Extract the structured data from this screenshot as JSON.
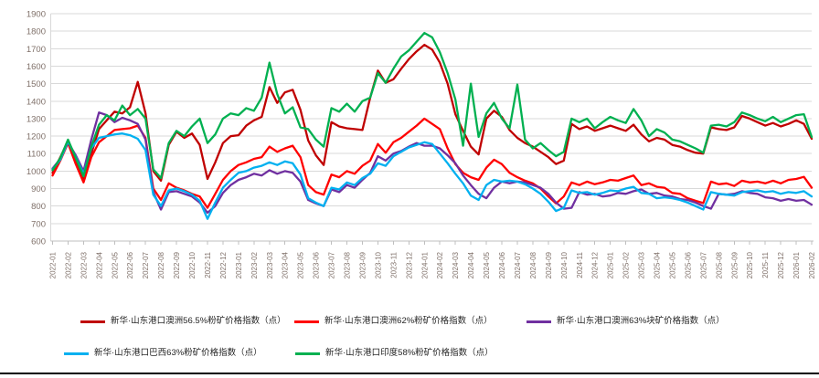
{
  "chart_data": {
    "type": "line",
    "title": "",
    "xlabel": "",
    "ylabel": "",
    "ylim": [
      600,
      1900
    ],
    "y_ticks": [
      1900,
      1800,
      1700,
      1600,
      1500,
      1400,
      1300,
      1200,
      1100,
      1000,
      900,
      800,
      700,
      600
    ],
    "grid": true,
    "legend_position": "bottom",
    "axis_label_color": "#7f7069",
    "gridline_color": "#d9d9d9",
    "tick_color": "#bfbfbf",
    "points_per_month": 2,
    "x_labels": [
      "2022-01",
      "2022-02",
      "2022-03",
      "2022-04",
      "2022-05",
      "2022-06",
      "2022-07",
      "2022-08",
      "2022-09",
      "2022-10",
      "2022-11",
      "2022-12",
      "2023-01",
      "2023-02",
      "2023-03",
      "2023-04",
      "2023-05",
      "2023-06",
      "2023-07",
      "2023-08",
      "2023-09",
      "2023-10",
      "2023-11",
      "2023-12",
      "2024-01",
      "2024-02",
      "2024-03",
      "2024-04",
      "2024-05",
      "2024-06",
      "2024-07",
      "2024-08",
      "2024-09",
      "2024-10",
      "2024-11",
      "2024-12",
      "2025-01",
      "2025-02",
      "2025-03",
      "2025-04",
      "2025-05",
      "2025-06",
      "2025-07",
      "2025-08",
      "2025-09",
      "2025-10",
      "2025-11",
      "2025-12",
      "2026-01",
      "2026-02"
    ],
    "series": [
      {
        "name": "新华·山东港口澳洲56.5%粉矿价格指数（点）",
        "color": "#C00000",
        "values": [
          990,
          1080,
          1170,
          1055,
          945,
          1100,
          1240,
          1290,
          1340,
          1330,
          1365,
          1510,
          1330,
          1000,
          945,
          1150,
          1225,
          1190,
          1215,
          1150,
          955,
          1050,
          1160,
          1200,
          1205,
          1260,
          1290,
          1310,
          1480,
          1390,
          1450,
          1465,
          1350,
          1175,
          1090,
          1035,
          1280,
          1255,
          1245,
          1240,
          1235,
          1420,
          1575,
          1505,
          1525,
          1585,
          1640,
          1685,
          1722,
          1695,
          1620,
          1500,
          1325,
          1230,
          1140,
          1095,
          1300,
          1345,
          1310,
          1235,
          1190,
          1160,
          1140,
          1110,
          1080,
          1040,
          1060,
          1270,
          1240,
          1255,
          1230,
          1245,
          1260,
          1245,
          1230,
          1265,
          1210,
          1170,
          1190,
          1180,
          1150,
          1140,
          1120,
          1105,
          1100,
          1250,
          1240,
          1235,
          1250,
          1315,
          1300,
          1280,
          1260,
          1275,
          1255,
          1270,
          1290,
          1270,
          1185
        ]
      },
      {
        "name": "新华·山东港口澳洲62%粉矿价格指数（点）",
        "color": "#FF0000",
        "values": [
          975,
          1060,
          1160,
          1040,
          935,
          1080,
          1165,
          1200,
          1235,
          1240,
          1245,
          1260,
          1190,
          900,
          835,
          930,
          905,
          890,
          870,
          855,
          790,
          870,
          950,
          1000,
          1035,
          1050,
          1070,
          1080,
          1140,
          1110,
          1130,
          1145,
          1080,
          920,
          880,
          865,
          980,
          965,
          1000,
          985,
          1030,
          1060,
          1155,
          1105,
          1165,
          1190,
          1225,
          1260,
          1300,
          1270,
          1240,
          1130,
          1040,
          990,
          965,
          950,
          1020,
          1065,
          1040,
          990,
          965,
          945,
          930,
          900,
          855,
          815,
          855,
          935,
          920,
          940,
          925,
          935,
          950,
          945,
          960,
          975,
          920,
          930,
          910,
          905,
          875,
          870,
          845,
          830,
          817,
          940,
          925,
          930,
          915,
          945,
          935,
          940,
          930,
          945,
          930,
          950,
          955,
          967,
          905
        ]
      },
      {
        "name": "新华·山东港口澳洲63%块矿价格指数（点）",
        "color": "#7030A0",
        "values": [
          1015,
          1070,
          1165,
          1090,
          1000,
          1180,
          1335,
          1320,
          1280,
          1305,
          1290,
          1270,
          1180,
          880,
          780,
          880,
          885,
          870,
          855,
          820,
          762,
          800,
          875,
          920,
          950,
          965,
          985,
          975,
          1005,
          985,
          1000,
          990,
          940,
          835,
          815,
          800,
          895,
          880,
          920,
          905,
          950,
          990,
          1085,
          1060,
          1100,
          1115,
          1140,
          1160,
          1145,
          1145,
          1130,
          1090,
          1045,
          975,
          920,
          870,
          845,
          905,
          940,
          930,
          940,
          935,
          920,
          905,
          870,
          820,
          785,
          790,
          880,
          865,
          870,
          855,
          860,
          875,
          870,
          885,
          895,
          870,
          875,
          860,
          855,
          840,
          835,
          820,
          800,
          785,
          870,
          865,
          870,
          885,
          875,
          870,
          850,
          845,
          830,
          840,
          830,
          835,
          808
        ]
      },
      {
        "name": "新华·山东港口巴西63%粉矿价格指数（点）",
        "color": "#00B0F0",
        "values": [
          1010,
          1065,
          1170,
          1080,
          985,
          1130,
          1190,
          1200,
          1210,
          1215,
          1205,
          1185,
          1120,
          865,
          800,
          890,
          900,
          885,
          865,
          830,
          727,
          820,
          905,
          950,
          990,
          1000,
          1020,
          1030,
          1050,
          1035,
          1055,
          1045,
          980,
          845,
          820,
          800,
          905,
          895,
          935,
          920,
          960,
          985,
          1045,
          1030,
          1085,
          1110,
          1135,
          1150,
          1165,
          1155,
          1100,
          1045,
          985,
          930,
          860,
          835,
          920,
          950,
          940,
          945,
          940,
          925,
          900,
          870,
          825,
          772,
          790,
          890,
          875,
          880,
          865,
          875,
          890,
          885,
          900,
          910,
          875,
          870,
          845,
          850,
          845,
          835,
          820,
          800,
          780,
          880,
          870,
          865,
          860,
          880,
          885,
          890,
          880,
          885,
          870,
          880,
          875,
          885,
          855
        ]
      },
      {
        "name": "新华·山东港口印度58%粉矿价格指数（点）",
        "color": "#00B050",
        "values": [
          1005,
          1075,
          1180,
          1075,
          970,
          1140,
          1265,
          1320,
          1290,
          1375,
          1320,
          1355,
          1300,
          1010,
          960,
          1160,
          1230,
          1200,
          1255,
          1300,
          1160,
          1210,
          1300,
          1330,
          1320,
          1360,
          1345,
          1420,
          1620,
          1440,
          1330,
          1365,
          1250,
          1240,
          1180,
          1140,
          1360,
          1340,
          1385,
          1340,
          1400,
          1420,
          1560,
          1505,
          1585,
          1655,
          1690,
          1740,
          1790,
          1765,
          1680,
          1560,
          1410,
          1145,
          1500,
          1195,
          1330,
          1390,
          1300,
          1245,
          1495,
          1180,
          1130,
          1160,
          1120,
          1085,
          1110,
          1300,
          1280,
          1300,
          1245,
          1280,
          1310,
          1290,
          1275,
          1355,
          1290,
          1200,
          1240,
          1220,
          1180,
          1170,
          1150,
          1130,
          1105,
          1260,
          1265,
          1255,
          1280,
          1335,
          1320,
          1300,
          1285,
          1310,
          1280,
          1300,
          1320,
          1325,
          1195
        ]
      }
    ]
  }
}
